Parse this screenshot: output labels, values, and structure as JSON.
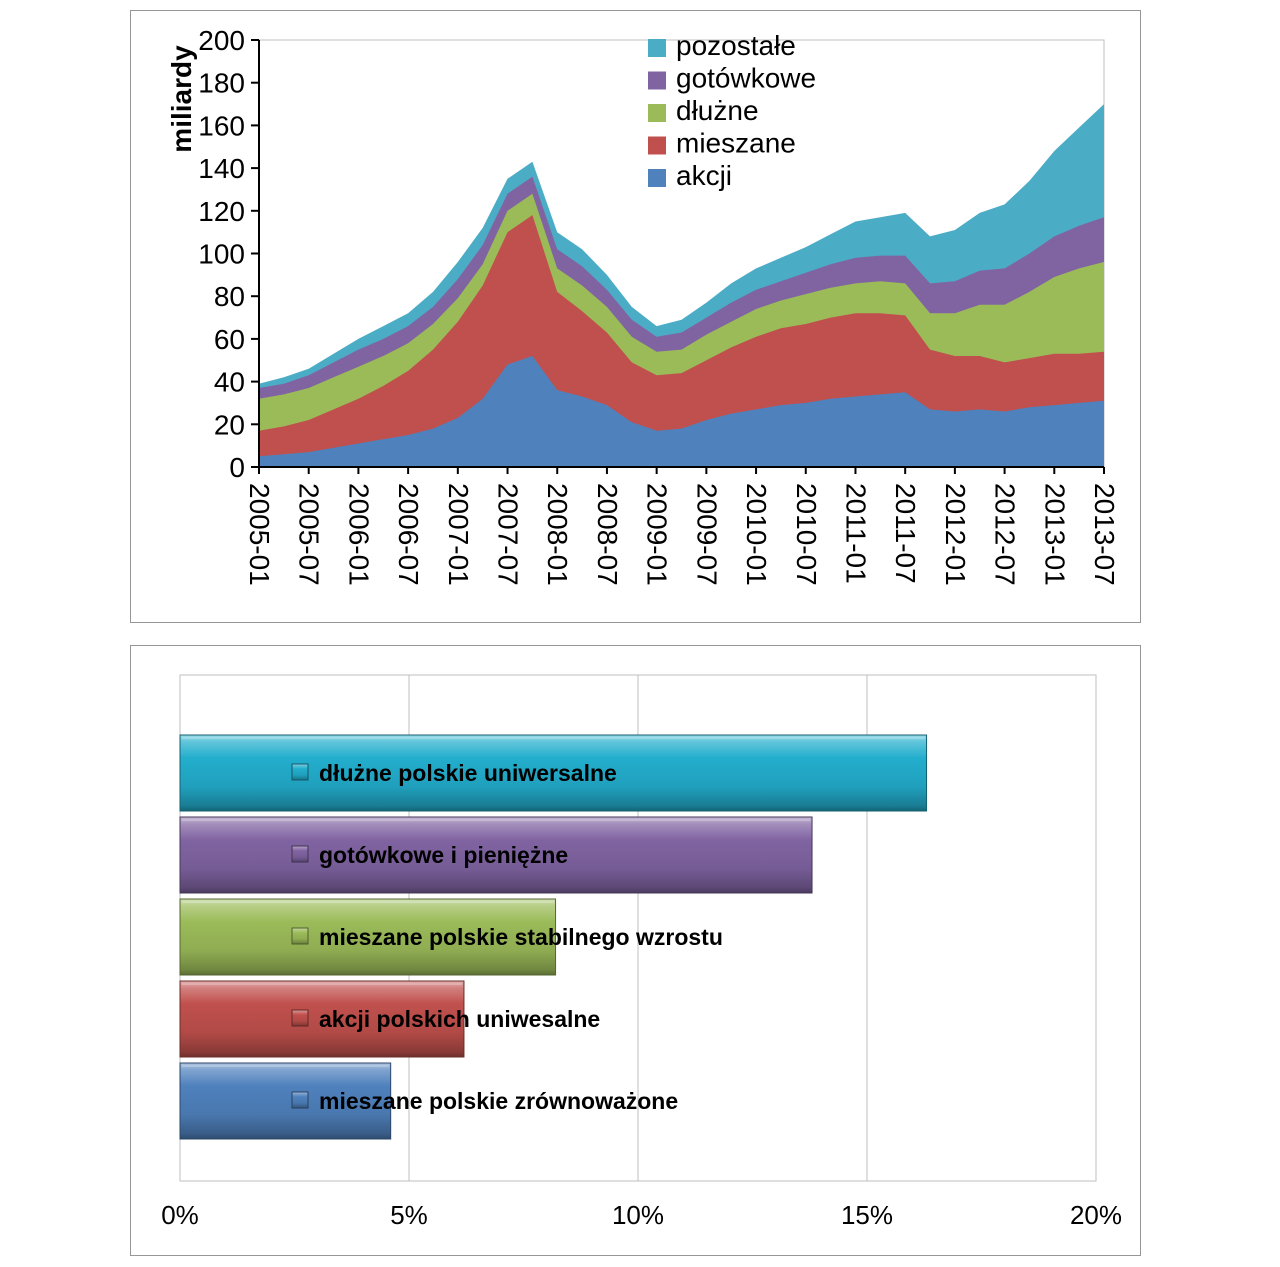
{
  "page": {
    "background": "#ffffff"
  },
  "chart_data": [
    {
      "type": "area",
      "stacked": true,
      "title": "",
      "xlabel": "",
      "ylabel": "miliardy",
      "ylim": [
        0,
        200
      ],
      "ytick_step": 20,
      "grid": false,
      "legend_position": "top-inside",
      "x_tick_every": 2,
      "x": [
        "2005-01",
        "2005-04",
        "2005-07",
        "2005-10",
        "2006-01",
        "2006-04",
        "2006-07",
        "2006-10",
        "2007-01",
        "2007-04",
        "2007-07",
        "2007-10",
        "2008-01",
        "2008-04",
        "2008-07",
        "2008-10",
        "2009-01",
        "2009-04",
        "2009-07",
        "2009-10",
        "2010-01",
        "2010-04",
        "2010-07",
        "2010-10",
        "2011-01",
        "2011-04",
        "2011-07",
        "2011-10",
        "2012-01",
        "2012-04",
        "2012-07",
        "2012-10",
        "2013-01",
        "2013-04",
        "2013-07"
      ],
      "x_tick_labels": [
        "2005-01",
        "2005-07",
        "2006-01",
        "2006-07",
        "2007-01",
        "2007-07",
        "2008-01",
        "2008-07",
        "2009-01",
        "2009-07",
        "2010-01",
        "2010-07",
        "2011-01",
        "2011-07",
        "2012-01",
        "2012-07",
        "2013-01",
        "2013-07"
      ],
      "legend": [
        "pozostałe",
        "gotówkowe",
        "dłużne",
        "mieszane",
        "akcji"
      ],
      "series": [
        {
          "name": "akcji",
          "color": "#4F81BD",
          "values": [
            5,
            6,
            7,
            9,
            11,
            13,
            15,
            18,
            23,
            32,
            48,
            52,
            36,
            33,
            29,
            21,
            17,
            18,
            22,
            25,
            27,
            29,
            30,
            32,
            33,
            34,
            35,
            27,
            26,
            27,
            26,
            28,
            29,
            30,
            31
          ]
        },
        {
          "name": "mieszane",
          "color": "#C0504D",
          "values": [
            12,
            13,
            15,
            18,
            21,
            25,
            30,
            37,
            45,
            53,
            62,
            66,
            46,
            40,
            34,
            28,
            26,
            26,
            28,
            31,
            34,
            36,
            37,
            38,
            39,
            38,
            36,
            28,
            26,
            25,
            23,
            23,
            24,
            23,
            23
          ]
        },
        {
          "name": "dłużne",
          "color": "#9BBB59",
          "values": [
            15,
            15,
            15,
            15,
            15,
            14,
            13,
            12,
            11,
            10,
            10,
            10,
            11,
            12,
            12,
            12,
            11,
            11,
            12,
            12,
            13,
            13,
            14,
            14,
            14,
            15,
            15,
            17,
            20,
            24,
            27,
            31,
            36,
            40,
            42
          ]
        },
        {
          "name": "gotówkowe",
          "color": "#8064A2",
          "values": [
            5,
            5,
            6,
            7,
            8,
            8,
            8,
            8,
            9,
            9,
            8,
            8,
            9,
            9,
            8,
            8,
            7,
            8,
            8,
            9,
            9,
            9,
            10,
            11,
            12,
            12,
            13,
            14,
            15,
            16,
            17,
            18,
            19,
            20,
            21
          ]
        },
        {
          "name": "pozostałe",
          "color": "#4BACC6",
          "values": [
            2,
            3,
            3,
            4,
            5,
            6,
            6,
            7,
            8,
            8,
            7,
            7,
            8,
            8,
            7,
            6,
            5,
            6,
            7,
            9,
            10,
            11,
            12,
            14,
            17,
            18,
            20,
            22,
            24,
            27,
            30,
            34,
            40,
            46,
            53
          ]
        }
      ]
    },
    {
      "type": "bar",
      "orientation": "horizontal",
      "title": "",
      "unit": "%",
      "xlim": [
        0,
        20
      ],
      "grid": true,
      "xtick_labels": [
        "0%",
        "5%",
        "10%",
        "15%",
        "20%"
      ],
      "categories": [
        "dłużne polskie uniwersalne",
        "gotówkowe i pieniężne",
        "mieszane polskie stabilnego wzrostu",
        "akcji polskich uniwesalne",
        "mieszane polskie zrównoważone"
      ],
      "values": [
        16.3,
        13.8,
        8.2,
        6.2,
        4.6
      ],
      "colors": [
        "#23AECD",
        "#8064A2",
        "#9BBB59",
        "#C0504D",
        "#4F81BD"
      ]
    }
  ]
}
